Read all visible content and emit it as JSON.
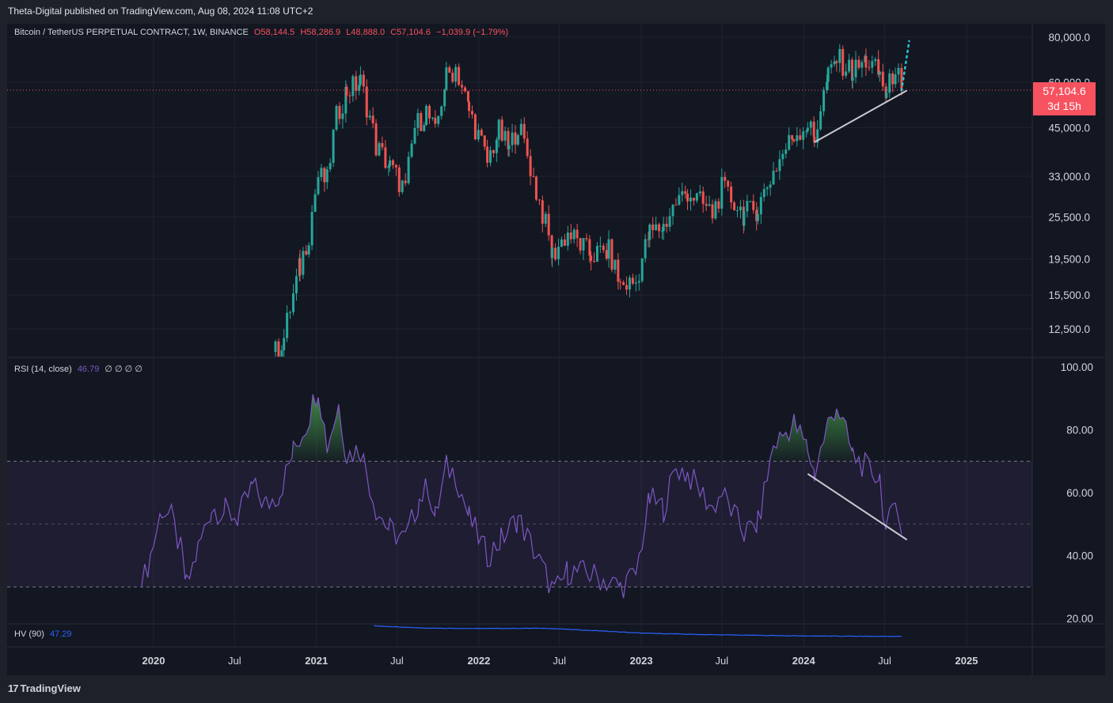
{
  "publisher": "Theta-Digital published on TradingView.com, Aug 08, 2024 11:08 UTC+2",
  "footer": {
    "logo": "17",
    "brand": "TradingView"
  },
  "price_legend": {
    "symbol": "Bitcoin / TetherUS PERPETUAL CONTRACT, 1W, BINANCE",
    "open": "O58,144.5",
    "high": "H58,286.9",
    "low": "L48,888.0",
    "close": "C57,104.6",
    "change": "−1,039.9 (−1.79%)"
  },
  "price_tag": {
    "price": "57,104.6",
    "countdown": "3d 15h"
  },
  "rsi_legend": {
    "label": "RSI (14, close)",
    "value": "46.79",
    "extras": "∅ ∅ ∅ ∅"
  },
  "hv_legend": {
    "label": "HV (90)",
    "value": "47.29"
  },
  "colors": {
    "up": "#26a69a",
    "down": "#ef5350",
    "rsi": "#7e57c2",
    "hv": "#2962ff",
    "last_price": "#f7525f"
  },
  "chart_data": [
    {
      "type": "candlestick",
      "title": "Bitcoin / TetherUS PERPETUAL CONTRACT, 1W, BINANCE",
      "y_scale": "log",
      "y_ticks": [
        "80,000.0",
        "60,000.0",
        "45,000.0",
        "33,000.0",
        "25,500.0",
        "19,500.0",
        "15,500.0",
        "12,500.0"
      ],
      "y_tick_values": [
        80000,
        60000,
        45000,
        33000,
        25500,
        19500,
        15500,
        12500
      ],
      "x_ticks": [
        "2020",
        "Jul",
        "2021",
        "Jul",
        "2022",
        "Jul",
        "2023",
        "Jul",
        "2024",
        "Jul",
        "2025"
      ],
      "last_price": 57104.6,
      "price_path": [
        [
          "2020-10-01",
          10800
        ],
        [
          "2020-10-20",
          11800
        ],
        [
          "2020-11-10",
          15500
        ],
        [
          "2020-11-25",
          18500
        ],
        [
          "2020-12-15",
          23000
        ],
        [
          "2021-01-05",
          33000
        ],
        [
          "2021-01-25",
          32000
        ],
        [
          "2021-02-15",
          48000
        ],
        [
          "2021-03-10",
          57000
        ],
        [
          "2021-04-10",
          60000
        ],
        [
          "2021-05-15",
          40000
        ],
        [
          "2021-06-15",
          35000
        ],
        [
          "2021-07-20",
          30000
        ],
        [
          "2021-08-10",
          45000
        ],
        [
          "2021-09-05",
          50000
        ],
        [
          "2021-09-25",
          43000
        ],
        [
          "2021-10-20",
          62000
        ],
        [
          "2021-11-10",
          66000
        ],
        [
          "2021-12-10",
          50000
        ],
        [
          "2022-01-20",
          36000
        ],
        [
          "2022-02-15",
          44000
        ],
        [
          "2022-03-10",
          39000
        ],
        [
          "2022-03-30",
          46000
        ],
        [
          "2022-05-10",
          30000
        ],
        [
          "2022-06-15",
          20000
        ],
        [
          "2022-07-20",
          23000
        ],
        [
          "2022-09-10",
          20000
        ],
        [
          "2022-10-20",
          20500
        ],
        [
          "2022-11-15",
          16500
        ],
        [
          "2022-12-20",
          16800
        ],
        [
          "2023-01-20",
          23000
        ],
        [
          "2023-02-20",
          24000
        ],
        [
          "2023-03-20",
          28000
        ],
        [
          "2023-04-15",
          30000
        ],
        [
          "2023-06-10",
          26000
        ],
        [
          "2023-07-01",
          30500
        ],
        [
          "2023-08-20",
          26000
        ],
        [
          "2023-09-20",
          27000
        ],
        [
          "2023-10-25",
          34000
        ],
        [
          "2023-12-10",
          43000
        ],
        [
          "2024-01-10",
          46000
        ],
        [
          "2024-01-25",
          42000
        ],
        [
          "2024-02-25",
          62000
        ],
        [
          "2024-03-15",
          70000
        ],
        [
          "2024-04-20",
          64000
        ],
        [
          "2024-05-20",
          69000
        ],
        [
          "2024-06-20",
          63000
        ],
        [
          "2024-07-05",
          55000
        ],
        [
          "2024-07-25",
          67000
        ],
        [
          "2024-08-08",
          57104.6
        ]
      ],
      "support_line": [
        [
          "2024-01-25",
          41000
        ],
        [
          "2024-08-20",
          57000
        ]
      ],
      "projection": [
        [
          "2024-08-08",
          57000
        ],
        [
          "2024-08-25",
          78000
        ]
      ]
    },
    {
      "type": "line",
      "name": "RSI (14, close)",
      "y_ticks": [
        "100.00",
        "80.00",
        "60.00",
        "40.00",
        "20.00"
      ],
      "y_tick_values": [
        100,
        80,
        60,
        40,
        20
      ],
      "bands": [
        70,
        50,
        30
      ],
      "last_value": 46.79,
      "values": [
        [
          "2019-12-05",
          30
        ],
        [
          "2019-12-25",
          40
        ],
        [
          "2020-01-20",
          55
        ],
        [
          "2020-02-10",
          52
        ],
        [
          "2020-03-05",
          40
        ],
        [
          "2020-03-15",
          30
        ],
        [
          "2020-04-10",
          42
        ],
        [
          "2020-05-10",
          55
        ],
        [
          "2020-06-10",
          54
        ],
        [
          "2020-07-10",
          52
        ],
        [
          "2020-08-10",
          62
        ],
        [
          "2020-09-10",
          56
        ],
        [
          "2020-10-10",
          60
        ],
        [
          "2020-11-10",
          73
        ],
        [
          "2020-12-10",
          82
        ],
        [
          "2021-01-05",
          94
        ],
        [
          "2021-01-25",
          75
        ],
        [
          "2021-02-20",
          88
        ],
        [
          "2021-03-10",
          72
        ],
        [
          "2021-04-10",
          74
        ],
        [
          "2021-05-15",
          55
        ],
        [
          "2021-06-15",
          48
        ],
        [
          "2021-07-20",
          45
        ],
        [
          "2021-08-20",
          58
        ],
        [
          "2021-09-10",
          62
        ],
        [
          "2021-09-25",
          52
        ],
        [
          "2021-10-20",
          68
        ],
        [
          "2021-11-10",
          66
        ],
        [
          "2021-12-10",
          52
        ],
        [
          "2022-01-20",
          40
        ],
        [
          "2022-02-20",
          45
        ],
        [
          "2022-03-30",
          52
        ],
        [
          "2022-05-10",
          40
        ],
        [
          "2022-06-20",
          28
        ],
        [
          "2022-07-20",
          35
        ],
        [
          "2022-09-10",
          34
        ],
        [
          "2022-11-15",
          30
        ],
        [
          "2022-12-20",
          34
        ],
        [
          "2023-01-20",
          58
        ],
        [
          "2023-02-20",
          55
        ],
        [
          "2023-03-20",
          68
        ],
        [
          "2023-04-15",
          66
        ],
        [
          "2023-06-10",
          55
        ],
        [
          "2023-07-01",
          60
        ],
        [
          "2023-08-20",
          47
        ],
        [
          "2023-09-20",
          50
        ],
        [
          "2023-10-25",
          75
        ],
        [
          "2023-12-10",
          82
        ],
        [
          "2024-01-10",
          74
        ],
        [
          "2024-01-25",
          66
        ],
        [
          "2024-02-25",
          82
        ],
        [
          "2024-03-15",
          88
        ],
        [
          "2024-04-20",
          72
        ],
        [
          "2024-05-20",
          68
        ],
        [
          "2024-06-20",
          65
        ],
        [
          "2024-07-05",
          46
        ],
        [
          "2024-07-25",
          61
        ],
        [
          "2024-08-08",
          46.79
        ]
      ],
      "divergence_line": [
        [
          "2024-01-10",
          66
        ],
        [
          "2024-08-20",
          45
        ]
      ]
    },
    {
      "type": "line",
      "name": "HV (90)",
      "last_value": 47.29,
      "values": [
        [
          "2021-05-10",
          95
        ],
        [
          "2021-09-01",
          85
        ],
        [
          "2022-01-01",
          83
        ],
        [
          "2022-06-01",
          84
        ],
        [
          "2022-10-01",
          72
        ],
        [
          "2023-01-01",
          62
        ],
        [
          "2023-06-01",
          55
        ],
        [
          "2023-12-01",
          50
        ],
        [
          "2024-04-01",
          48
        ],
        [
          "2024-08-08",
          47.29
        ]
      ]
    }
  ]
}
